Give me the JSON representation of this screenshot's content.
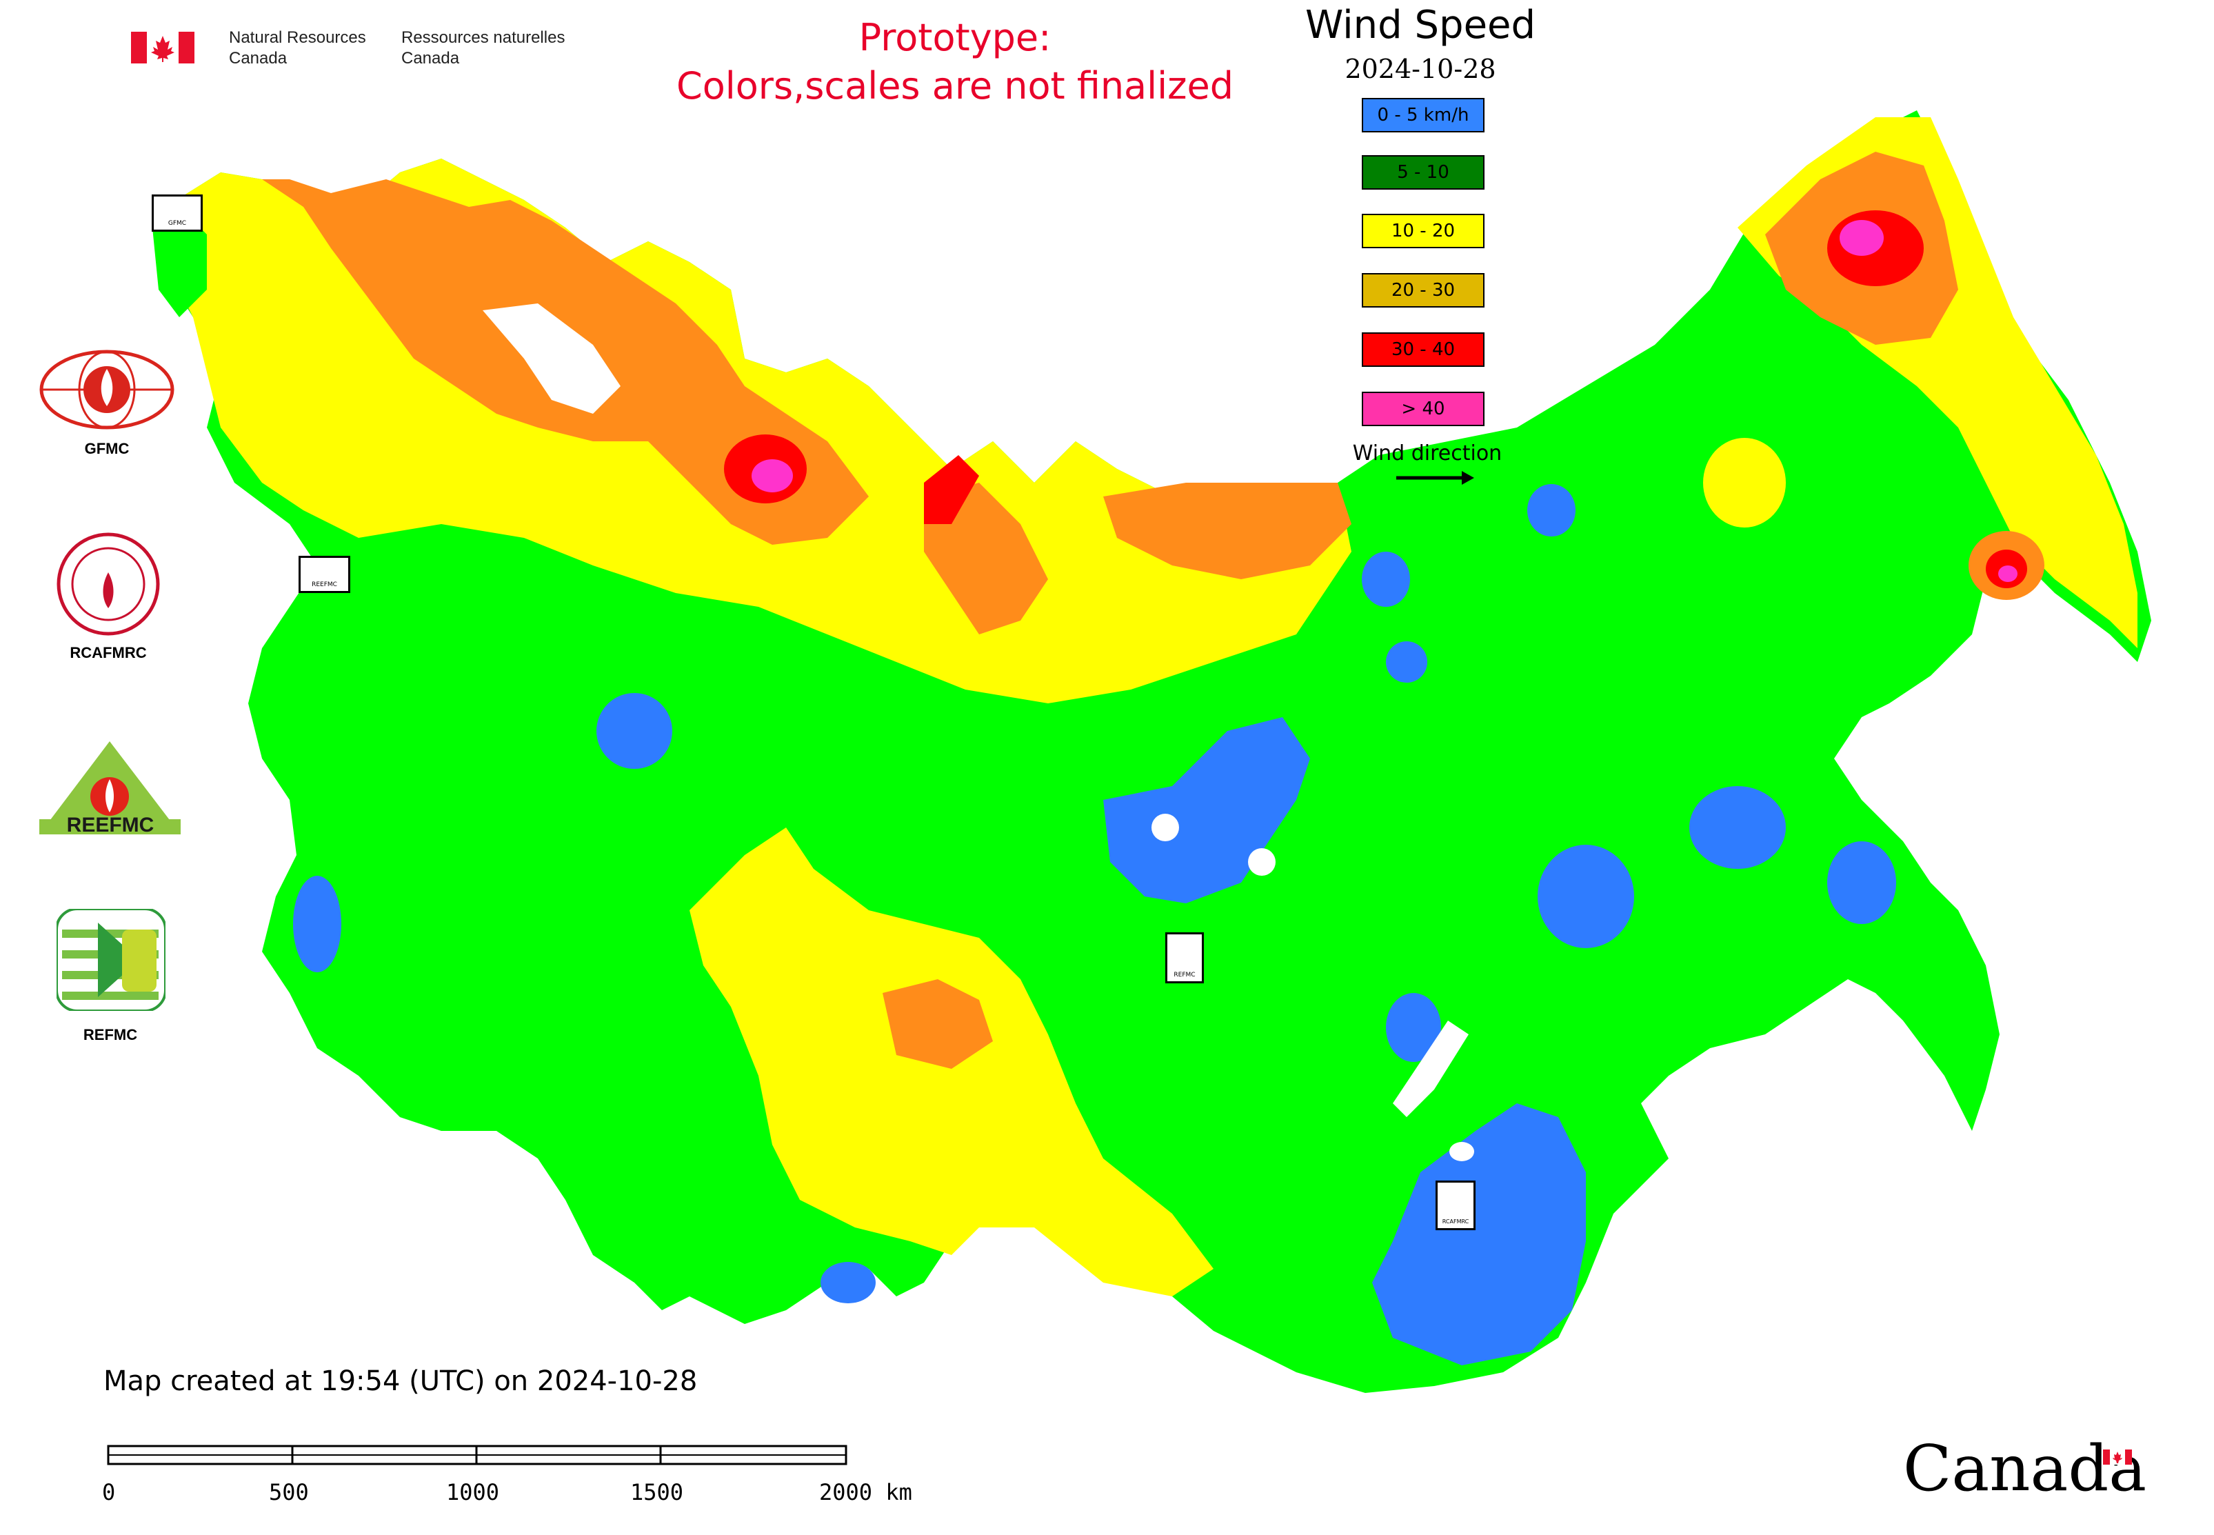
{
  "header": {
    "nrcan_en_line1": "Natural Resources",
    "nrcan_en_line2": "Canada",
    "nrcan_fr_line1": "Ressources naturelles",
    "nrcan_fr_line2": "Canada",
    "prototype_line1": "Prototype:",
    "prototype_line2": "Colors,scales are not finalized"
  },
  "map": {
    "title": "Wind Speed",
    "date": "2024-10-28",
    "created_note": "Map created at 19:54 (UTC) on 2024-10-28",
    "wind_direction_label": "Wind direction"
  },
  "legend": [
    {
      "label": "0 - 5 km/h",
      "color": "#3385ff"
    },
    {
      "label": "5 - 10",
      "color": "#008000"
    },
    {
      "label": "10 - 20",
      "color": "#ffff00"
    },
    {
      "label": "20 - 30",
      "color": "#e0b800"
    },
    {
      "label": "30 - 40",
      "color": "#ff0000"
    },
    {
      "label": "> 40",
      "color": "#ff33aa"
    }
  ],
  "zone_colors": {
    "calm": "#2f7cff",
    "light": "#00ff00",
    "moderate": "#ffff00",
    "fresh": "#ff8c1a",
    "strong": "#ff0000",
    "gale": "#ff33cc"
  },
  "partners": [
    {
      "name": "GFMC",
      "icon": "gfmc-logo"
    },
    {
      "name": "RCAFMRC",
      "icon": "rcafmrc-logo"
    },
    {
      "name": "REEFMC",
      "icon": "reefmc-logo"
    },
    {
      "name": "REFMC",
      "icon": "refmc-logo"
    }
  ],
  "marker_labels": [
    "GFMC",
    "REEFMC",
    "REFMC",
    "RCAFMRC"
  ],
  "scalebar": {
    "ticks": [
      "0",
      "500",
      "1000",
      "1500",
      "2000 km"
    ]
  },
  "footer": {
    "wordmark": "Canada"
  }
}
